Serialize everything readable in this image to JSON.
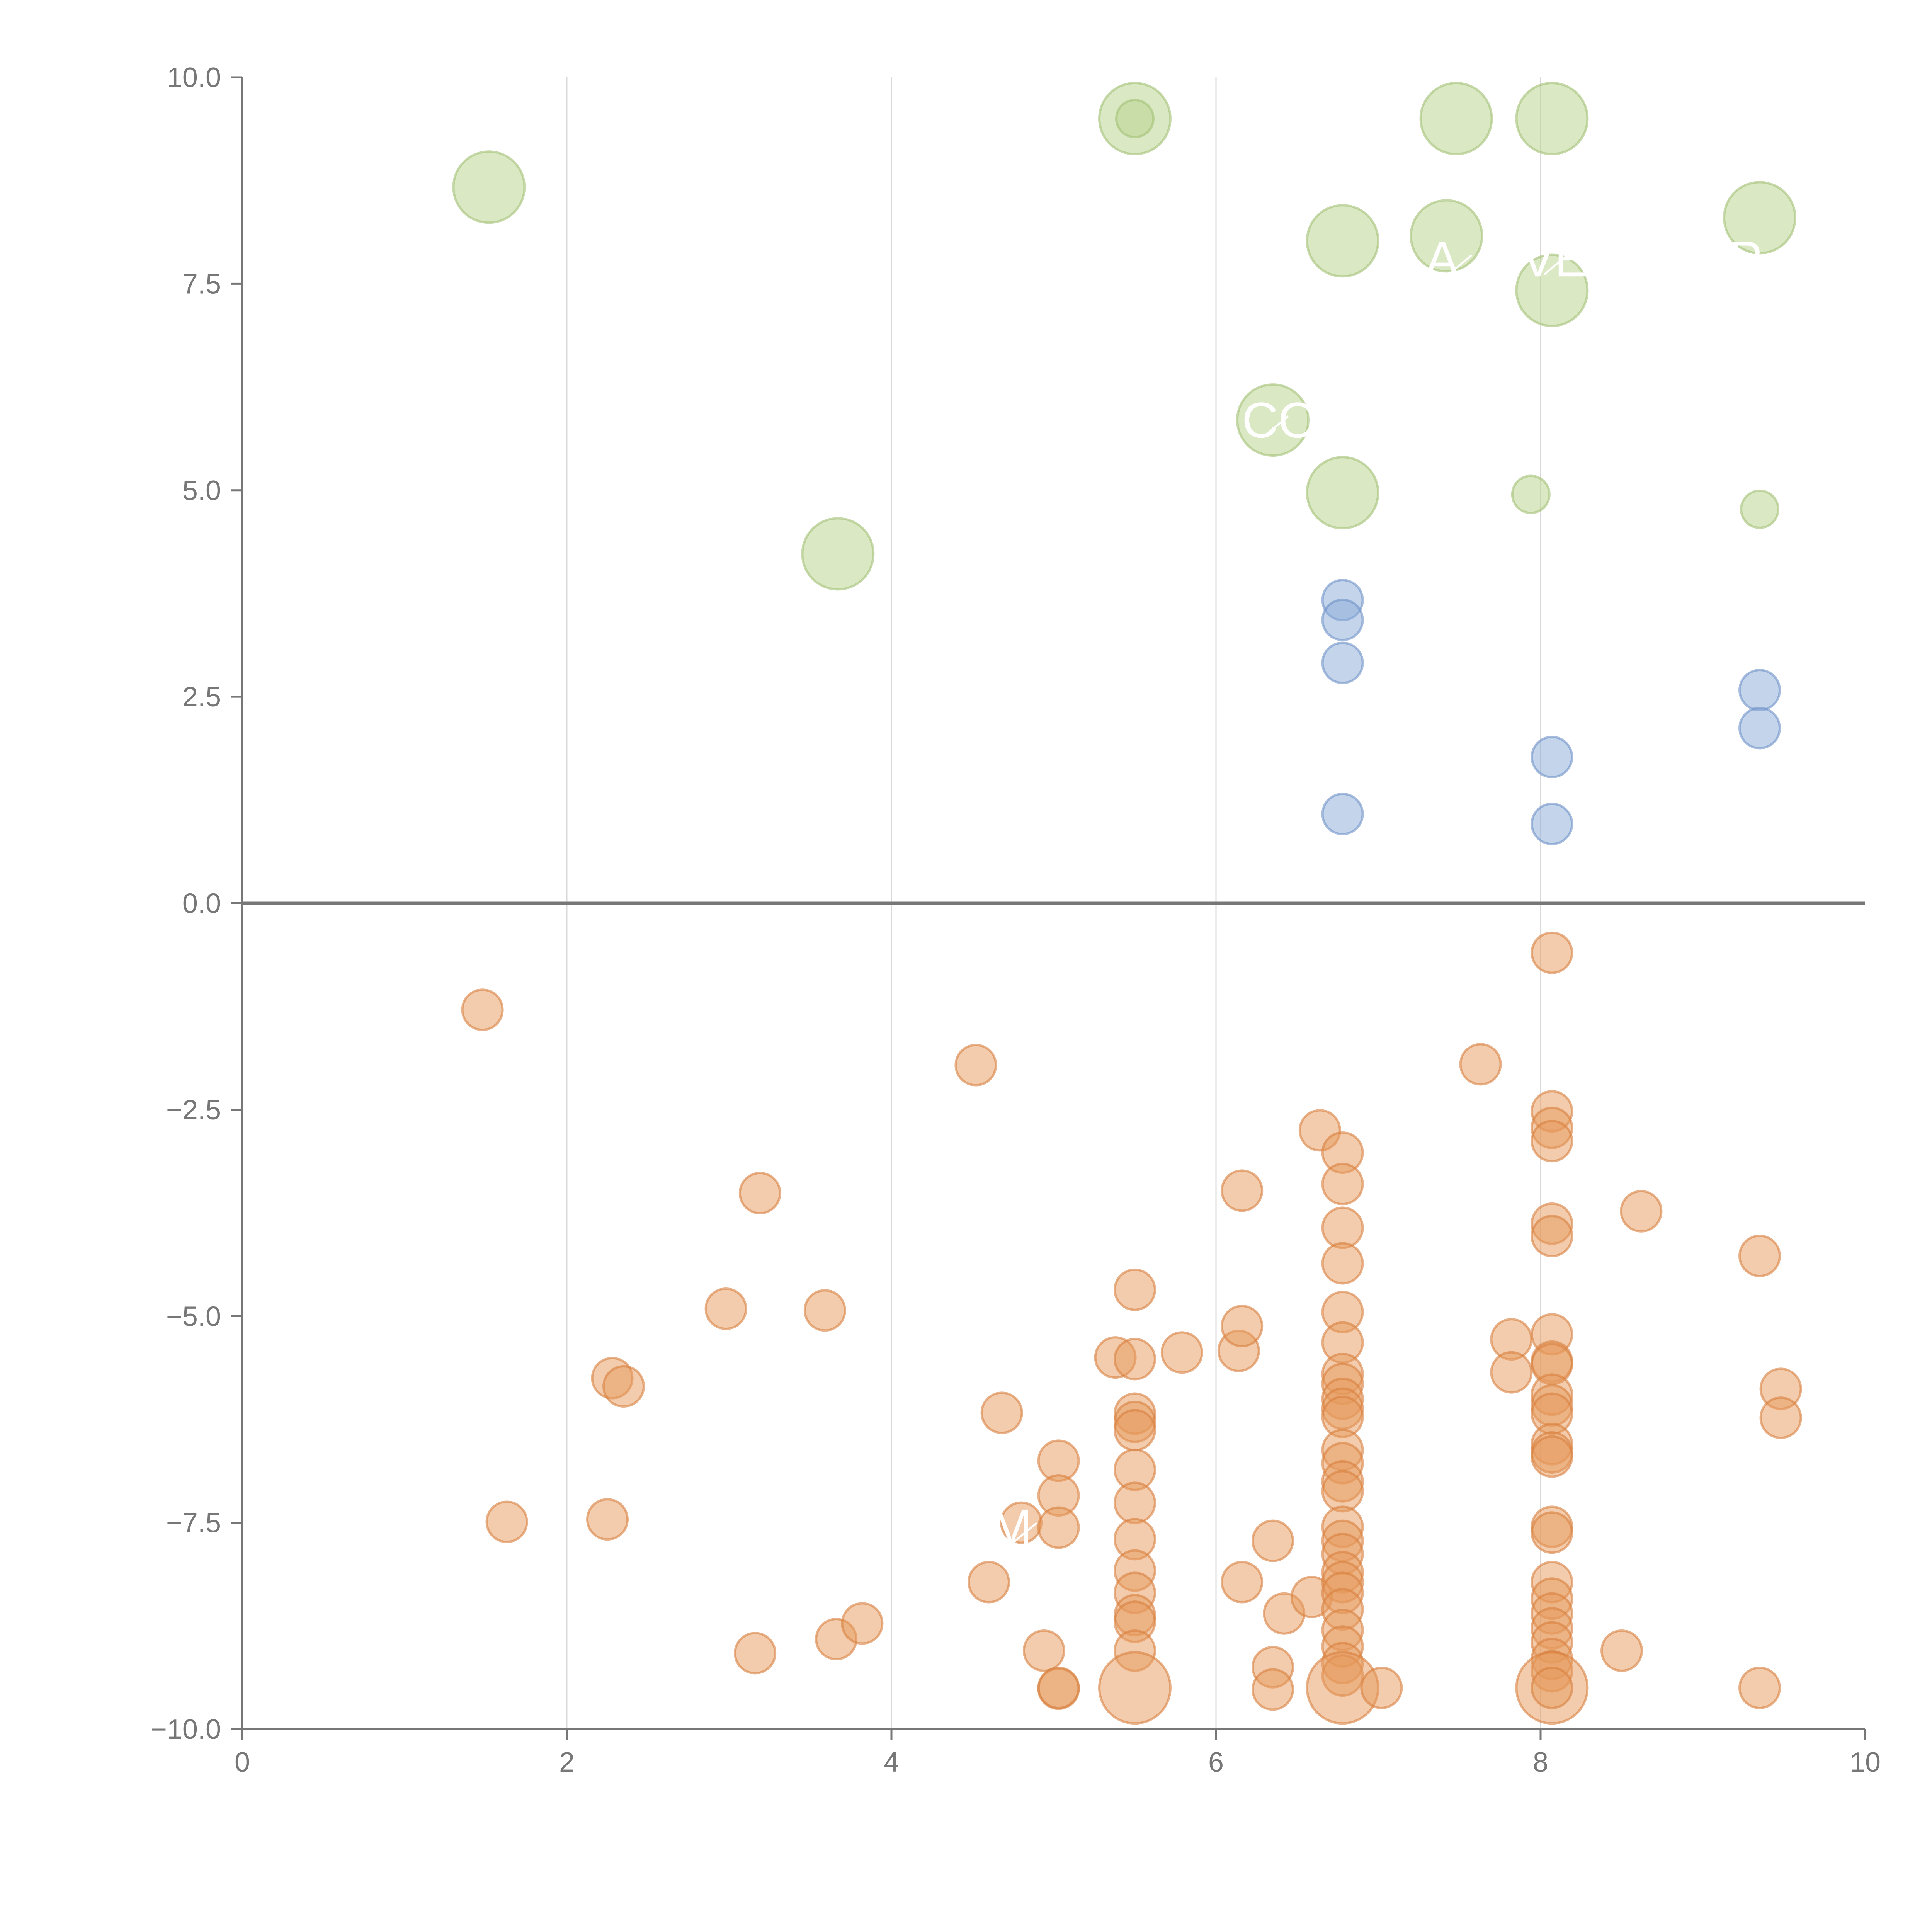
{
  "chart_data": {
    "type": "scatter",
    "title": "",
    "xlabel": "",
    "ylabel": "",
    "xlim": [
      0,
      10
    ],
    "ylim": [
      -10,
      10
    ],
    "x_ticks": [
      0,
      2,
      4,
      6,
      8,
      10
    ],
    "x_tick_labels": [
      "0",
      "2",
      "4",
      "6",
      "8",
      "10"
    ],
    "y_ticks": [
      10,
      7.5,
      5,
      2.5,
      0,
      -2.5,
      -5,
      -7.5,
      -10
    ],
    "y_tick_labels": [
      "10.0",
      "7.5",
      "5.0",
      "2.5",
      "0.0",
      "−2.5",
      "−5.0",
      "−7.5",
      "−10.0"
    ],
    "grid": "vertical",
    "zero_line": true,
    "series": [
      {
        "name": "green",
        "color": "#b5d18a",
        "stroke": "#a3c277",
        "points": [
          [
            1.52,
            8.67,
            2
          ],
          [
            3.67,
            4.23,
            2
          ],
          [
            5.5,
            9.5,
            2
          ],
          [
            5.5,
            9.5,
            0.8
          ],
          [
            6.35,
            5.85,
            2
          ],
          [
            6.78,
            4.97,
            2
          ],
          [
            6.78,
            8.02,
            2
          ],
          [
            7.42,
            8.08,
            2
          ],
          [
            7.48,
            9.5,
            2
          ],
          [
            7.94,
            4.95,
            0.8
          ],
          [
            8.07,
            9.5,
            2
          ],
          [
            8.07,
            7.42,
            2
          ],
          [
            9.35,
            8.3,
            2
          ],
          [
            9.35,
            4.77,
            0.8
          ]
        ]
      },
      {
        "name": "blue",
        "color": "#8aaad7",
        "stroke": "#6f93c8",
        "points": [
          [
            6.78,
            3.67,
            1
          ],
          [
            6.78,
            3.43,
            1
          ],
          [
            6.78,
            2.91,
            1
          ],
          [
            6.78,
            1.08,
            1
          ],
          [
            8.07,
            1.77,
            1
          ],
          [
            8.07,
            0.96,
            1
          ],
          [
            9.35,
            2.58,
            1
          ],
          [
            9.35,
            2.12,
            1
          ]
        ]
      },
      {
        "name": "orange",
        "color": "#e6995c",
        "stroke": "#d98140",
        "points": [
          [
            1.48,
            -1.29,
            1
          ],
          [
            1.63,
            -7.49,
            1
          ],
          [
            2.25,
            -7.46,
            1
          ],
          [
            2.28,
            -5.75,
            1
          ],
          [
            2.35,
            -5.85,
            1
          ],
          [
            2.98,
            -4.91,
            1
          ],
          [
            3.16,
            -9.08,
            1
          ],
          [
            3.19,
            -3.51,
            1
          ],
          [
            3.59,
            -4.93,
            1
          ],
          [
            3.66,
            -8.91,
            1
          ],
          [
            3.82,
            -8.72,
            1
          ],
          [
            4.52,
            -1.96,
            1
          ],
          [
            4.6,
            -8.22,
            1
          ],
          [
            4.68,
            -6.17,
            1
          ],
          [
            4.8,
            -7.5,
            1
          ],
          [
            4.94,
            -9.05,
            1
          ],
          [
            5.03,
            -6.75,
            1
          ],
          [
            5.03,
            -7.17,
            1
          ],
          [
            5.03,
            -7.56,
            1
          ],
          [
            5.03,
            -9.51,
            1
          ],
          [
            5.03,
            -9.5,
            1
          ],
          [
            5.38,
            -5.5,
            1
          ],
          [
            5.5,
            -4.68,
            1
          ],
          [
            5.5,
            -5.52,
            1
          ],
          [
            5.5,
            -6.18,
            1
          ],
          [
            5.5,
            -6.28,
            1
          ],
          [
            5.5,
            -6.38,
            1
          ],
          [
            5.5,
            -6.86,
            1
          ],
          [
            5.5,
            -7.26,
            1
          ],
          [
            5.5,
            -7.7,
            1
          ],
          [
            5.5,
            -8.08,
            1
          ],
          [
            5.5,
            -8.35,
            1
          ],
          [
            5.5,
            -8.62,
            1
          ],
          [
            5.5,
            -8.7,
            1
          ],
          [
            5.5,
            -9.05,
            1
          ],
          [
            5.5,
            -9.5,
            2
          ],
          [
            5.79,
            -5.44,
            1
          ],
          [
            6.14,
            -5.42,
            1
          ],
          [
            6.16,
            -5.12,
            1
          ],
          [
            6.16,
            -3.48,
            1
          ],
          [
            6.16,
            -8.22,
            1
          ],
          [
            6.35,
            -7.72,
            1
          ],
          [
            6.35,
            -9.25,
            1
          ],
          [
            6.35,
            -9.52,
            1
          ],
          [
            6.42,
            -8.6,
            1
          ],
          [
            6.59,
            -8.4,
            1
          ],
          [
            6.64,
            -2.75,
            1
          ],
          [
            6.78,
            -3.02,
            1
          ],
          [
            6.78,
            -3.4,
            1
          ],
          [
            6.78,
            -3.93,
            1
          ],
          [
            6.78,
            -4.36,
            1
          ],
          [
            6.78,
            -4.95,
            1
          ],
          [
            6.78,
            -5.32,
            1
          ],
          [
            6.78,
            -5.7,
            1
          ],
          [
            6.78,
            -5.82,
            1
          ],
          [
            6.78,
            -6.0,
            1
          ],
          [
            6.78,
            -6.12,
            1
          ],
          [
            6.78,
            -6.22,
            1
          ],
          [
            6.78,
            -6.62,
            1
          ],
          [
            6.78,
            -6.78,
            1
          ],
          [
            6.78,
            -7.0,
            1
          ],
          [
            6.78,
            -7.12,
            1
          ],
          [
            6.78,
            -7.55,
            1
          ],
          [
            6.78,
            -7.72,
            1
          ],
          [
            6.78,
            -7.88,
            1
          ],
          [
            6.78,
            -8.1,
            1
          ],
          [
            6.78,
            -8.22,
            1
          ],
          [
            6.78,
            -8.35,
            1
          ],
          [
            6.78,
            -8.55,
            1
          ],
          [
            6.78,
            -8.8,
            1
          ],
          [
            6.78,
            -9.0,
            1
          ],
          [
            6.78,
            -9.2,
            1
          ],
          [
            6.78,
            -9.35,
            1
          ],
          [
            6.78,
            -9.5,
            2
          ],
          [
            7.02,
            -9.5,
            1
          ],
          [
            7.63,
            -1.95,
            1
          ],
          [
            7.82,
            -5.28,
            1
          ],
          [
            7.82,
            -5.68,
            1
          ],
          [
            8.07,
            -0.6,
            1
          ],
          [
            8.07,
            -2.52,
            1
          ],
          [
            8.07,
            -2.72,
            1
          ],
          [
            8.07,
            -2.88,
            1
          ],
          [
            8.07,
            -3.88,
            1
          ],
          [
            8.07,
            -4.03,
            1
          ],
          [
            8.07,
            -5.22,
            1
          ],
          [
            8.07,
            -5.55,
            1
          ],
          [
            8.07,
            -5.58,
            1
          ],
          [
            8.07,
            -5.95,
            1
          ],
          [
            8.07,
            -6.08,
            1
          ],
          [
            8.07,
            -6.18,
            1
          ],
          [
            8.07,
            -6.55,
            1
          ],
          [
            8.07,
            -6.65,
            1
          ],
          [
            8.07,
            -6.7,
            1
          ],
          [
            8.07,
            -7.55,
            1
          ],
          [
            8.07,
            -7.62,
            1
          ],
          [
            8.07,
            -8.22,
            1
          ],
          [
            8.07,
            -8.42,
            1
          ],
          [
            8.07,
            -8.6,
            1
          ],
          [
            8.07,
            -8.78,
            1
          ],
          [
            8.07,
            -8.95,
            1
          ],
          [
            8.07,
            -9.15,
            1
          ],
          [
            8.07,
            -9.3,
            1
          ],
          [
            8.07,
            -9.5,
            2
          ],
          [
            8.07,
            -9.5,
            1
          ],
          [
            8.5,
            -9.05,
            1
          ],
          [
            8.62,
            -3.73,
            1
          ],
          [
            9.35,
            -4.27,
            1
          ],
          [
            9.35,
            -9.5,
            1
          ],
          [
            9.48,
            -5.88,
            1
          ],
          [
            9.48,
            -6.23,
            1
          ]
        ]
      }
    ],
    "annotations": [
      {
        "text": "CO",
        "x": 6.35,
        "y": 5.85
      },
      {
        "text": "A",
        "x": 7.48,
        "y": 7.8
      },
      {
        "text": "VE",
        "x": 8.07,
        "y": 7.8
      },
      {
        "text": "P",
        "x": 9.35,
        "y": 7.8
      },
      {
        "text": "M",
        "x": 4.8,
        "y": -7.55
      }
    ]
  }
}
